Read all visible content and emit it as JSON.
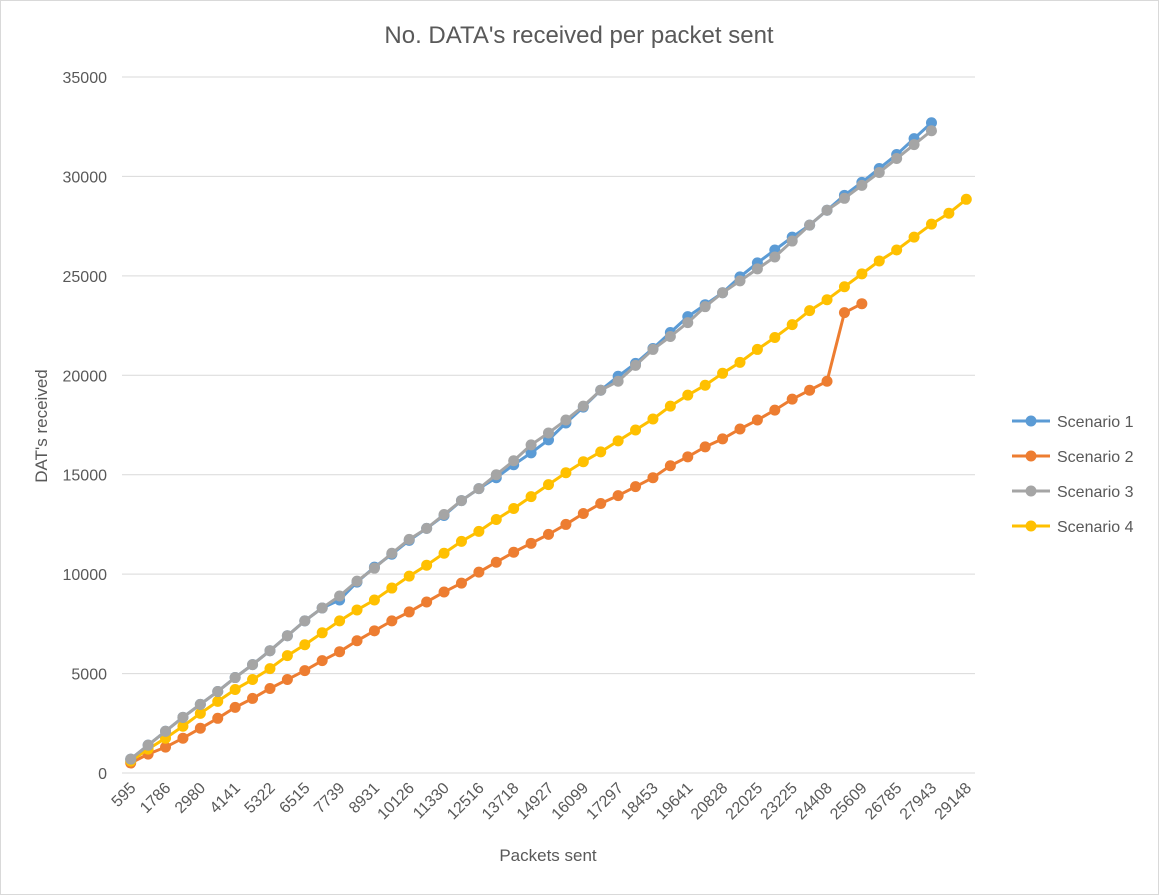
{
  "chart_data": {
    "type": "line",
    "title": "No. DATA's received per packet sent",
    "xlabel": "Packets sent",
    "ylabel": "DAT's received",
    "ylim": [
      0,
      35000
    ],
    "y_ticks": [
      0,
      5000,
      10000,
      15000,
      20000,
      25000,
      30000,
      35000
    ],
    "x_tick_labels": [
      "595",
      "1786",
      "2980",
      "4141",
      "5322",
      "6515",
      "7739",
      "8931",
      "10126",
      "11330",
      "12516",
      "13718",
      "14927",
      "16099",
      "17297",
      "18453",
      "19641",
      "20828",
      "22025",
      "23225",
      "24408",
      "25609",
      "26785",
      "27943",
      "29148"
    ],
    "grid": "horizontal",
    "legend_position": "right",
    "series": [
      {
        "name": "Scenario 1",
        "color": "#5b9bd5",
        "values": [
          700,
          1400,
          2100,
          2800,
          3450,
          4100,
          4800,
          5450,
          6150,
          6900,
          7650,
          8300,
          8700,
          9600,
          10350,
          11000,
          11700,
          12300,
          12950,
          13700,
          14300,
          14850,
          15500,
          16100,
          16750,
          17600,
          18400,
          19250,
          19950,
          20600,
          21350,
          22150,
          22950,
          23550,
          24150,
          24950,
          25650,
          26300,
          26950,
          27550,
          28300,
          29050,
          29700,
          30400,
          31100,
          31900,
          32700
        ]
      },
      {
        "name": "Scenario 2",
        "color": "#ed7d31",
        "values": [
          500,
          950,
          1300,
          1750,
          2250,
          2750,
          3300,
          3750,
          4250,
          4700,
          5150,
          5650,
          6100,
          6650,
          7150,
          7650,
          8100,
          8600,
          9100,
          9550,
          10100,
          10600,
          11100,
          11550,
          12000,
          12500,
          13050,
          13550,
          13950,
          14400,
          14850,
          15450,
          15900,
          16400,
          16800,
          17300,
          17750,
          18250,
          18800,
          19250,
          19700,
          23150,
          23600
        ]
      },
      {
        "name": "Scenario 3",
        "color": "#a5a5a5",
        "values": [
          700,
          1400,
          2100,
          2800,
          3450,
          4100,
          4800,
          5450,
          6150,
          6900,
          7650,
          8300,
          8900,
          9650,
          10300,
          11050,
          11750,
          12300,
          13000,
          13700,
          14300,
          15000,
          15700,
          16500,
          17100,
          17750,
          18450,
          19250,
          19700,
          20500,
          21300,
          21950,
          22650,
          23450,
          24150,
          24750,
          25350,
          25950,
          26750,
          27550,
          28300,
          28900,
          29550,
          30200,
          30900,
          31600,
          32300
        ]
      },
      {
        "name": "Scenario 4",
        "color": "#ffc000",
        "values": [
          600,
          1200,
          1750,
          2350,
          3000,
          3600,
          4200,
          4700,
          5250,
          5900,
          6450,
          7050,
          7650,
          8200,
          8700,
          9300,
          9900,
          10450,
          11050,
          11650,
          12150,
          12750,
          13300,
          13900,
          14500,
          15100,
          15650,
          16150,
          16700,
          17250,
          17800,
          18450,
          19000,
          19500,
          20100,
          20650,
          21300,
          21900,
          22550,
          23250,
          23800,
          24450,
          25100,
          25750,
          26300,
          26950,
          27600,
          28150,
          28850
        ]
      }
    ]
  }
}
